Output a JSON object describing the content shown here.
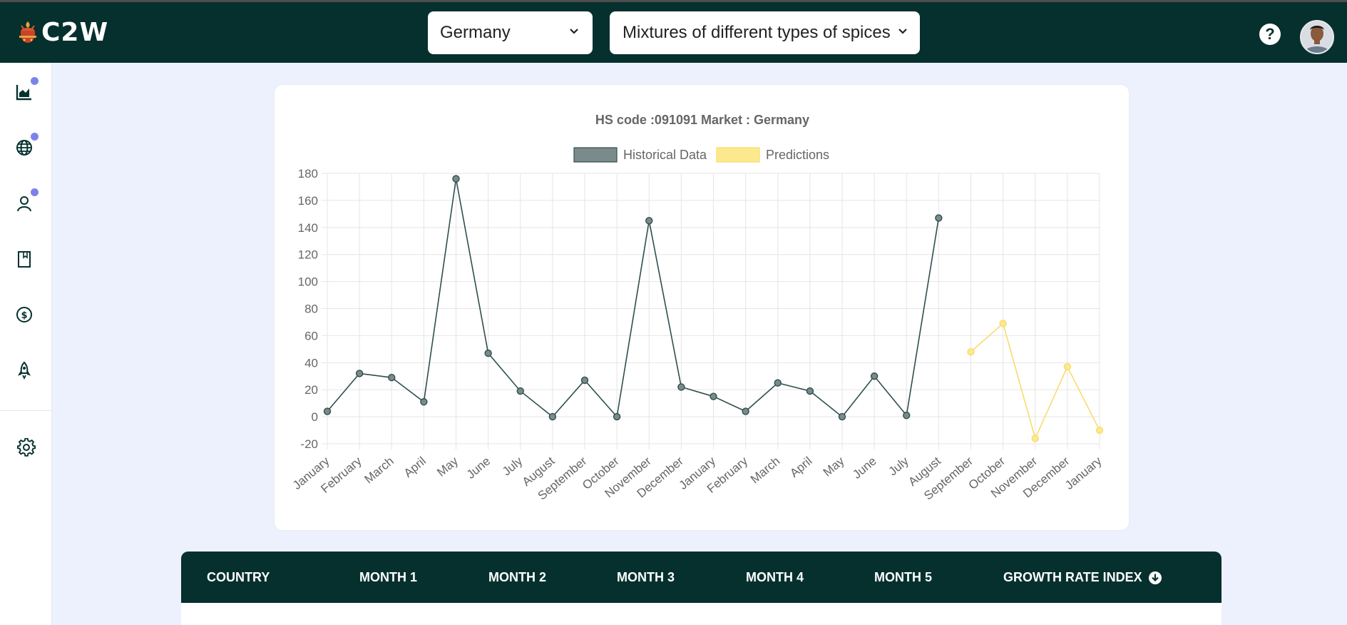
{
  "app": {
    "name": "C2W"
  },
  "header": {
    "country_select": {
      "value": "Germany"
    },
    "product_select": {
      "value": "Mixtures of different types of spices"
    },
    "help_label": "?"
  },
  "sidebar": {
    "items": [
      {
        "icon": "area-chart-icon",
        "badge": true
      },
      {
        "icon": "globe-icon",
        "badge": true
      },
      {
        "icon": "user-icon",
        "badge": true
      },
      {
        "icon": "bookmark-icon",
        "badge": false
      },
      {
        "icon": "dollar-icon",
        "badge": false
      },
      {
        "icon": "rocket-icon",
        "badge": false
      },
      {
        "icon": "gear-icon",
        "badge": false
      }
    ]
  },
  "colors": {
    "header_bg": "#05302e",
    "page_bg": "#edf1fd",
    "historical_line": "#2f4f4f",
    "historical_fill": "#7b8a8b",
    "prediction_line": "#f7dc6f",
    "prediction_fill": "#fde98d",
    "badge": "#7b83ea"
  },
  "chart_data": {
    "type": "line",
    "title": "HS code :091091 Market : Germany",
    "legend_position": "top",
    "grid": true,
    "ylim": [
      -20,
      180
    ],
    "yticks": [
      -20,
      0,
      20,
      40,
      60,
      80,
      100,
      120,
      140,
      160,
      180
    ],
    "categories": [
      "January",
      "February",
      "March",
      "April",
      "May",
      "June",
      "July",
      "August",
      "September",
      "October",
      "November",
      "December",
      "January",
      "February",
      "March",
      "April",
      "May",
      "June",
      "July",
      "August",
      "September",
      "October",
      "November",
      "December",
      "January"
    ],
    "series": [
      {
        "name": "Historical Data",
        "values": [
          4,
          32,
          29,
          11,
          176,
          47,
          19,
          0,
          27,
          0,
          145,
          22,
          15,
          4,
          25,
          19,
          0,
          30,
          1,
          147,
          null,
          null,
          null,
          null,
          null
        ]
      },
      {
        "name": "Predictions",
        "values": [
          null,
          null,
          null,
          null,
          null,
          null,
          null,
          null,
          null,
          null,
          null,
          null,
          null,
          null,
          null,
          null,
          null,
          null,
          null,
          null,
          48,
          69,
          -16,
          37,
          -10
        ]
      }
    ]
  },
  "table": {
    "columns": [
      "COUNTRY",
      "MONTH 1",
      "MONTH 2",
      "MONTH 3",
      "MONTH 4",
      "MONTH 5",
      "GROWTH RATE INDEX"
    ]
  }
}
